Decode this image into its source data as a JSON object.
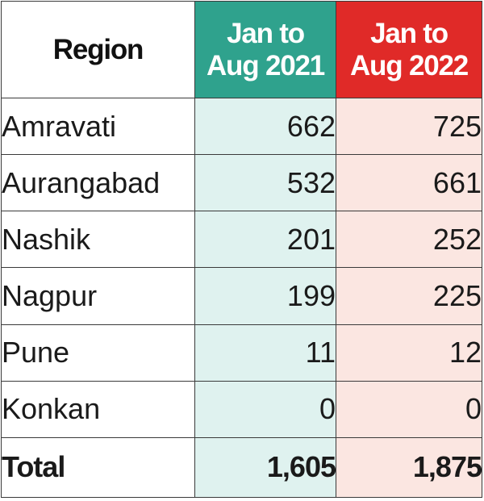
{
  "chart_data": {
    "type": "table",
    "columns": [
      "Region",
      "Jan to Aug 2021",
      "Jan to Aug 2022"
    ],
    "header_lines": {
      "region": [
        "Region"
      ],
      "y2021": [
        "Jan to",
        "Aug 2021"
      ],
      "y2022": [
        "Jan to",
        "Aug 2022"
      ]
    },
    "rows": [
      {
        "region": "Amravati",
        "y2021": "662",
        "y2022": "725"
      },
      {
        "region": "Aurangabad",
        "y2021": "532",
        "y2022": "661"
      },
      {
        "region": "Nashik",
        "y2021": "201",
        "y2022": "252"
      },
      {
        "region": "Nagpur",
        "y2021": "199",
        "y2022": "225"
      },
      {
        "region": "Pune",
        "y2021": "11",
        "y2022": "12"
      },
      {
        "region": "Konkan",
        "y2021": "0",
        "y2022": "0"
      }
    ],
    "total": {
      "label": "Total",
      "y2021": "1,605",
      "y2022": "1,875"
    },
    "colors": {
      "header_2021": "#2fa28d",
      "header_2022": "#e02a28",
      "cell_2021": "#dff2ef",
      "cell_2022": "#fbe6e1"
    }
  }
}
